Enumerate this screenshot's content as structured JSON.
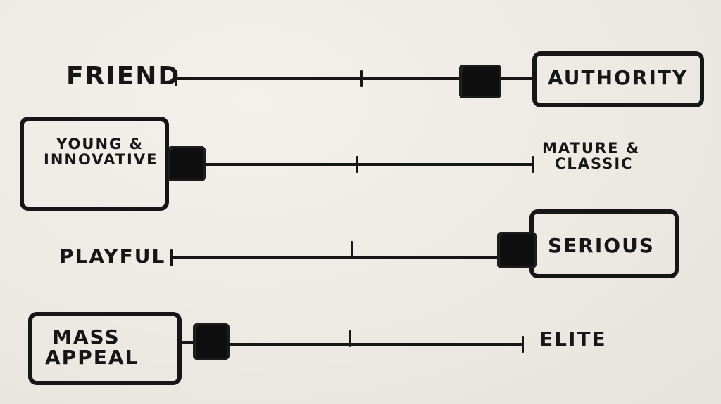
{
  "scales": [
    {
      "left_label": "FRIEND",
      "right_label": "AUTHORITY",
      "boxed_side": "right",
      "marker_position": 0.85
    },
    {
      "left_label_lines": [
        "YOUNG &",
        "INNOVATIVE"
      ],
      "right_label_lines": [
        "MATURE &",
        "CLASSIC"
      ],
      "boxed_side": "left",
      "marker_position": 0.05
    },
    {
      "left_label": "PLAYFUL",
      "right_label": "SERIOUS",
      "boxed_side": "right",
      "marker_position": 0.95
    },
    {
      "left_label_lines": [
        "MASS",
        "APPEAL"
      ],
      "right_label": "ELITE",
      "boxed_side": "left",
      "marker_position": 0.08
    }
  ]
}
